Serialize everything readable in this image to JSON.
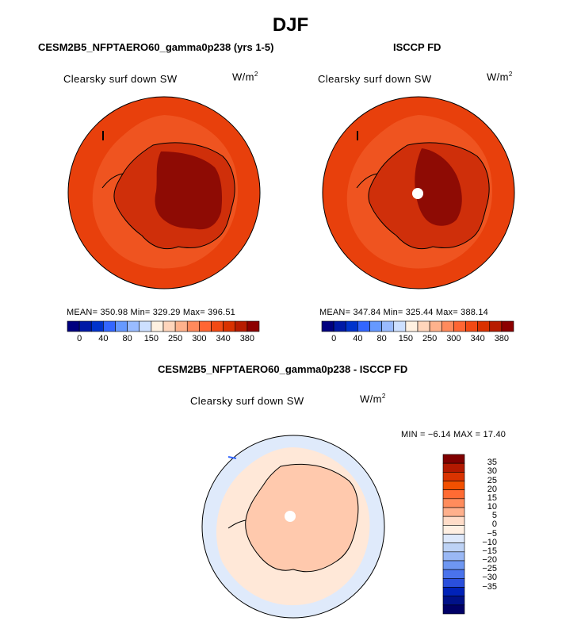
{
  "header": {
    "title": "DJF"
  },
  "panels": [
    {
      "title": "CESM2B5_NFPTAERO60_gamma0p238 (yrs 1-5)",
      "variable": "Clearsky surf down SW",
      "units_base": "W/m",
      "units_exp": "2",
      "stats": "MEAN= 350.98   Min= 329.29   Max= 396.51"
    },
    {
      "title": "ISCCP FD",
      "variable": "Clearsky surf down SW",
      "units_base": "W/m",
      "units_exp": "2",
      "stats": "MEAN= 347.84   Min= 325.44   Max= 388.14"
    },
    {
      "title": "CESM2B5_NFPTAERO60_gamma0p238 - ISCCP FD",
      "variable": "Clearsky surf down SW",
      "units_base": "W/m",
      "units_exp": "2",
      "stats": "MIN =  −6.14  MAX =  17.40"
    }
  ],
  "colors": {
    "abs_scale": [
      "#00007f",
      "#0019a6",
      "#0033cc",
      "#3366ff",
      "#6699ff",
      "#99bbff",
      "#cde0ff",
      "#fff1e1",
      "#ffd5bb",
      "#ffb28c",
      "#ff8a5c",
      "#ff6633",
      "#f24a14",
      "#d93200",
      "#b71c00",
      "#8c0000"
    ],
    "diff_scale": [
      "#800000",
      "#b31900",
      "#d93300",
      "#f25000",
      "#ff6b33",
      "#ff8c5c",
      "#ffb08c",
      "#ffdcc8",
      "#ffefe2",
      "#dde8fb",
      "#bdd2f5",
      "#9ab8f5",
      "#6e97f2",
      "#4a73ec",
      "#2a4fdc",
      "#0022b8",
      "#001188",
      "#000066"
    ]
  },
  "chart_data": [
    {
      "type": "polar-map",
      "title": "CESM2B5_NFPTAERO60_gamma0p238 (yrs 1-5)",
      "variable": "Clearsky surf down SW",
      "units": "W/m^2",
      "colorbar_ticks": [
        "0",
        "40",
        "80",
        "150",
        "250",
        "300",
        "340",
        "380"
      ],
      "mean": 350.98,
      "min": 329.29,
      "max": 396.51
    },
    {
      "type": "polar-map",
      "title": "ISCCP FD",
      "variable": "Clearsky surf down SW",
      "units": "W/m^2",
      "colorbar_ticks": [
        "0",
        "40",
        "80",
        "150",
        "250",
        "300",
        "340",
        "380"
      ],
      "mean": 347.84,
      "min": 325.44,
      "max": 388.14
    },
    {
      "type": "polar-map",
      "title": "CESM2B5_NFPTAERO60_gamma0p238 - ISCCP FD",
      "variable": "Clearsky surf down SW",
      "units": "W/m^2",
      "colorbar_ticks": [
        "35",
        "30",
        "25",
        "20",
        "15",
        "10",
        "5",
        "0",
        "−5",
        "−10",
        "−15",
        "−20",
        "−25",
        "−30",
        "−35"
      ],
      "min": -6.14,
      "max": 17.4
    }
  ]
}
